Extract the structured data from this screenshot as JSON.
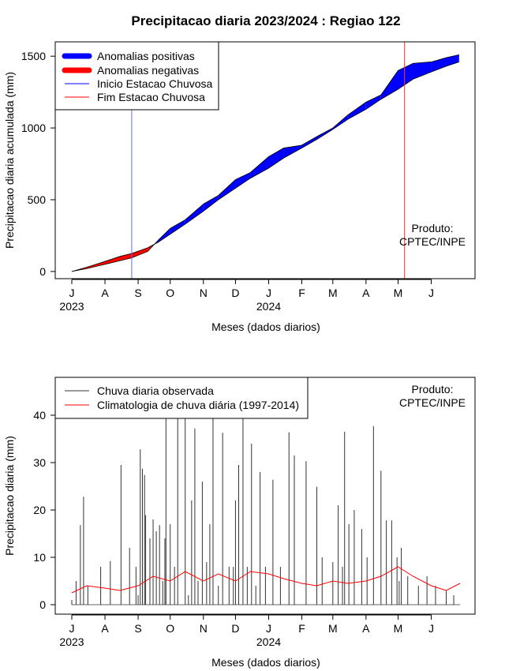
{
  "title": "Precipitacao diaria 2023/2024 : Regiao 122",
  "produto_label_1": "Produto:",
  "produto_label_2": "CPTEC/INPE",
  "x_axis_label": "Meses (dados diarios)",
  "month_ticks": [
    "J",
    "A",
    "S",
    "O",
    "N",
    "D",
    "J",
    "F",
    "M",
    "A",
    "M",
    "J"
  ],
  "year_labels": [
    "2023",
    "2024"
  ],
  "colors": {
    "positive": "#0000ff",
    "negative": "#ff0000",
    "observed": "#333333",
    "climatology": "#ff0000",
    "start_line": "#6666ff",
    "end_line": "#ff3333"
  },
  "chart_data": [
    {
      "type": "area",
      "title": "Precipitacao diaria 2023/2024 : Regiao 122",
      "xlabel": "Meses (dados diarios)",
      "ylabel": "Precipitacao diaria acumulada (mm)",
      "x_tick_labels": [
        "J",
        "A",
        "S",
        "O",
        "N",
        "D",
        "J",
        "F",
        "M",
        "A",
        "M",
        "J"
      ],
      "year_labels": [
        "2023",
        "2024"
      ],
      "y_ticks": [
        0,
        500,
        1000,
        1500
      ],
      "ylim": [
        -50,
        1600
      ],
      "x_range": [
        "2023-07-01",
        "2024-06-30"
      ],
      "legend_position": "top-left",
      "legend": [
        {
          "label": "Anomalias positivas",
          "kind": "thick",
          "color": "#0000ff"
        },
        {
          "label": "Anomalias negativas",
          "kind": "thick",
          "color": "#ff0000"
        },
        {
          "label": "Inicio Estacao Chuvosa",
          "kind": "thin",
          "color": "#0000ff"
        },
        {
          "label": "Fim Estacao Chuvosa",
          "kind": "thin",
          "color": "#ff0000"
        }
      ],
      "rainy_season_start": "2023-08-26",
      "rainy_season_end": "2024-05-07",
      "series": [
        {
          "name": "Observada (acumulada)",
          "x": [
            "2023-07-01",
            "2023-07-15",
            "2023-08-01",
            "2023-08-15",
            "2023-08-26",
            "2023-09-10",
            "2023-09-20",
            "2023-10-01",
            "2023-10-15",
            "2023-11-01",
            "2023-11-15",
            "2023-12-01",
            "2023-12-15",
            "2024-01-01",
            "2024-01-15",
            "2024-02-01",
            "2024-02-15",
            "2024-03-01",
            "2024-03-15",
            "2024-04-01",
            "2024-04-15",
            "2024-05-01",
            "2024-05-15",
            "2024-06-01",
            "2024-06-15",
            "2024-06-27"
          ],
          "values": [
            0,
            20,
            50,
            75,
            95,
            140,
            220,
            300,
            360,
            470,
            530,
            640,
            690,
            800,
            860,
            880,
            940,
            1000,
            1090,
            1180,
            1230,
            1400,
            1450,
            1460,
            1490,
            1510
          ]
        },
        {
          "name": "Climatologia (acumulada)",
          "x": [
            "2023-07-01",
            "2023-07-15",
            "2023-08-01",
            "2023-08-15",
            "2023-08-26",
            "2023-09-10",
            "2023-09-20",
            "2023-10-01",
            "2023-10-15",
            "2023-11-01",
            "2023-11-15",
            "2023-12-01",
            "2023-12-15",
            "2024-01-01",
            "2024-01-15",
            "2024-02-01",
            "2024-02-15",
            "2024-03-01",
            "2024-03-15",
            "2024-04-01",
            "2024-04-15",
            "2024-05-01",
            "2024-05-15",
            "2024-06-01",
            "2024-06-15",
            "2024-06-27"
          ],
          "values": [
            0,
            30,
            70,
            105,
            125,
            165,
            205,
            260,
            330,
            420,
            500,
            580,
            650,
            720,
            790,
            860,
            920,
            990,
            1060,
            1130,
            1200,
            1270,
            1340,
            1390,
            1430,
            1460
          ]
        }
      ]
    },
    {
      "type": "line",
      "xlabel": "Meses (dados diarios)",
      "ylabel": "Precipitacao diaria (mm)",
      "x_tick_labels": [
        "J",
        "A",
        "S",
        "O",
        "N",
        "D",
        "J",
        "F",
        "M",
        "A",
        "M",
        "J"
      ],
      "year_labels": [
        "2023",
        "2024"
      ],
      "y_ticks": [
        0,
        10,
        20,
        30,
        40
      ],
      "ylim": [
        -2,
        48
      ],
      "x_range": [
        "2023-07-01",
        "2024-06-30"
      ],
      "legend_position": "top-left",
      "legend": [
        {
          "label": "Chuva diaria observada",
          "color": "#333333"
        },
        {
          "label": "Climatologia de chuva diária (1997-2014)",
          "color": "#ff0000"
        }
      ],
      "series": [
        {
          "name": "Chuva diaria observada",
          "style": "vertical-bars",
          "x": [
            "2023-07-01",
            "2023-07-05",
            "2023-07-09",
            "2023-07-12",
            "2023-07-16",
            "2023-07-28",
            "2023-08-06",
            "2023-08-16",
            "2023-08-24",
            "2023-08-30",
            "2023-09-01",
            "2023-09-03",
            "2023-09-05",
            "2023-09-07",
            "2023-09-08",
            "2023-09-12",
            "2023-09-15",
            "2023-09-18",
            "2023-09-21",
            "2023-09-24",
            "2023-09-26",
            "2023-09-27",
            "2023-10-01",
            "2023-10-05",
            "2023-10-08",
            "2023-10-15",
            "2023-10-18",
            "2023-10-21",
            "2023-10-24",
            "2023-10-27",
            "2023-10-31",
            "2023-11-04",
            "2023-11-07",
            "2023-11-10",
            "2023-11-15",
            "2023-11-19",
            "2023-11-25",
            "2023-11-29",
            "2023-12-01",
            "2023-12-04",
            "2023-12-08",
            "2023-12-12",
            "2023-12-16",
            "2023-12-20",
            "2023-12-24",
            "2023-12-29",
            "2024-01-05",
            "2024-01-12",
            "2024-01-20",
            "2024-01-25",
            "2024-02-05",
            "2024-02-15",
            "2024-02-20",
            "2024-03-01",
            "2024-03-06",
            "2024-03-10",
            "2024-03-12",
            "2024-03-16",
            "2024-03-21",
            "2024-03-28",
            "2024-04-02",
            "2024-04-08",
            "2024-04-15",
            "2024-04-20",
            "2024-04-25",
            "2024-04-30",
            "2024-05-02",
            "2024-05-04",
            "2024-05-10",
            "2024-05-20",
            "2024-05-28",
            "2024-06-05",
            "2024-06-15",
            "2024-06-22"
          ],
          "values": [
            1,
            5,
            16.8,
            22.8,
            4,
            8,
            9.2,
            29.5,
            12,
            8,
            2,
            32.8,
            28.7,
            27.4,
            18.9,
            14,
            18,
            15.5,
            16.8,
            5,
            14,
            41,
            17,
            8,
            41,
            40.3,
            2,
            22,
            37.2,
            5,
            26,
            9,
            17,
            40.3,
            4,
            36.3,
            8,
            8,
            22,
            29.5,
            40,
            8,
            34,
            4,
            28,
            8,
            26.4,
            8,
            36.4,
            31.5,
            30.3,
            24.9,
            10,
            9,
            21,
            8,
            36.5,
            17,
            20,
            16,
            10,
            37.7,
            28.3,
            17.8,
            17.8,
            10,
            5,
            12,
            6,
            4,
            6,
            4,
            3,
            2
          ]
        },
        {
          "name": "Climatologia de chuva diária (1997-2014)",
          "x": [
            "2023-07-01",
            "2023-07-15",
            "2023-08-01",
            "2023-08-15",
            "2023-09-01",
            "2023-09-15",
            "2023-10-01",
            "2023-10-15",
            "2023-11-01",
            "2023-11-15",
            "2023-12-01",
            "2023-12-15",
            "2024-01-01",
            "2024-01-15",
            "2024-02-01",
            "2024-02-15",
            "2024-03-01",
            "2024-03-15",
            "2024-04-01",
            "2024-04-15",
            "2024-05-01",
            "2024-05-15",
            "2024-06-01",
            "2024-06-15",
            "2024-06-28"
          ],
          "values": [
            2.5,
            4,
            3.5,
            3,
            4,
            6,
            5,
            7,
            5,
            6.5,
            5,
            7,
            6.5,
            5.5,
            4.5,
            4,
            5,
            4.5,
            5,
            6,
            8,
            6,
            4,
            3,
            4.5
          ]
        }
      ]
    }
  ]
}
